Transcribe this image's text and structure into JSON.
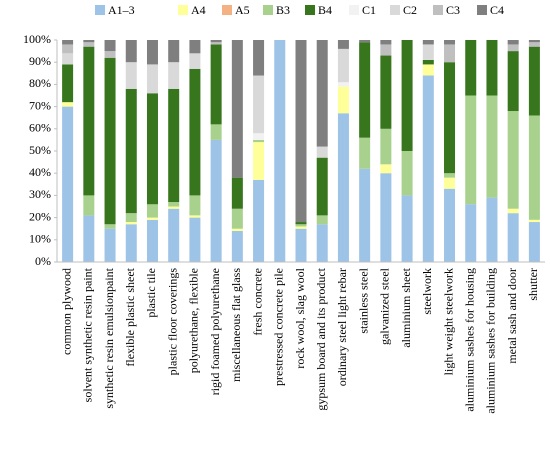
{
  "chart_data": {
    "type": "stacked_bar",
    "categories": [
      "common plywood",
      "solvent synthetic resin paint",
      "synthetic resin emulsionpaint",
      "flexible plastic sheet",
      "plastic tile",
      "plastic floor coverings",
      "polyurethane, flexible",
      "rigid foamed polyurethane",
      "miscellaneous flat glass",
      "fresh concrete",
      "prestressed concrete pile",
      "rock wool, slag wool",
      "gypsum board and its product",
      "ordinary steel light rebar",
      "stainless steel",
      "galvanized steel",
      "aluminium sheet",
      "steelwork",
      "light weight steelwork",
      "aluminium sashes for housing",
      "aluminium sashes for building",
      "metal sash and door",
      "shutter"
    ],
    "series": [
      {
        "name": "A1–3",
        "color": "#9dc3e6",
        "values": [
          70,
          21,
          15,
          17,
          19,
          24,
          20,
          55,
          14,
          37,
          100,
          15,
          17,
          67,
          42,
          40,
          30,
          84,
          33,
          26,
          29,
          22,
          18
        ]
      },
      {
        "name": "A4",
        "color": "#ffff99",
        "values": [
          2,
          0,
          0,
          1,
          1,
          1,
          1,
          0,
          1,
          17,
          0,
          1,
          0,
          12,
          0,
          4,
          0,
          5,
          5,
          0,
          0,
          2,
          1
        ]
      },
      {
        "name": "A5",
        "color": "#f4b183",
        "values": [
          0,
          0,
          0,
          0,
          0,
          0,
          0,
          0,
          0,
          0,
          0,
          0,
          0,
          0,
          0,
          0,
          0,
          0,
          0,
          0,
          0,
          0,
          0
        ]
      },
      {
        "name": "B3",
        "color": "#a9d18e",
        "values": [
          0,
          9,
          2,
          4,
          6,
          2,
          9,
          7,
          9,
          1,
          0,
          1,
          4,
          0,
          14,
          16,
          20,
          0,
          2,
          49,
          46,
          44,
          47
        ]
      },
      {
        "name": "B4",
        "color": "#38761d",
        "values": [
          17,
          67,
          75,
          56,
          50,
          51,
          57,
          36,
          14,
          0,
          0,
          1,
          26,
          0,
          43,
          33,
          50,
          2,
          50,
          25,
          25,
          27,
          31
        ]
      },
      {
        "name": "C1",
        "color": "#f2f2f2",
        "values": [
          0,
          0,
          0,
          0,
          0,
          0,
          0,
          0,
          0,
          3,
          0,
          0,
          0,
          2,
          0,
          0,
          0,
          0,
          0,
          0,
          0,
          0,
          0
        ]
      },
      {
        "name": "C2",
        "color": "#d9d9d9",
        "values": [
          5,
          0,
          0,
          12,
          13,
          12,
          7,
          0,
          0,
          26,
          0,
          0,
          5,
          15,
          0,
          0,
          0,
          7,
          0,
          0,
          0,
          0,
          0
        ]
      },
      {
        "name": "C3",
        "color": "#bfbfbf",
        "values": [
          4,
          2,
          3,
          0,
          0,
          0,
          0,
          1,
          0,
          0,
          0,
          0,
          0,
          0,
          0,
          5,
          0,
          0,
          8,
          0,
          0,
          3,
          2
        ]
      },
      {
        "name": "C4",
        "color": "#7f7f7f",
        "values": [
          2,
          1,
          5,
          10,
          11,
          10,
          6,
          1,
          62,
          16,
          0,
          82,
          48,
          4,
          1,
          2,
          0,
          2,
          2,
          0,
          0,
          2,
          1
        ]
      }
    ],
    "ylim": [
      0,
      100
    ],
    "yticks": [
      {
        "value": 0,
        "label": "0%"
      },
      {
        "value": 10,
        "label": "10%"
      },
      {
        "value": 20,
        "label": "20%"
      },
      {
        "value": 30,
        "label": "30%"
      },
      {
        "value": 40,
        "label": "40%"
      },
      {
        "value": 50,
        "label": "50%"
      },
      {
        "value": 60,
        "label": "60%"
      },
      {
        "value": 70,
        "label": "70%"
      },
      {
        "value": 80,
        "label": "80%"
      },
      {
        "value": 90,
        "label": "90%"
      },
      {
        "value": 100,
        "label": "100%"
      }
    ],
    "grid": false,
    "legend": "top"
  }
}
